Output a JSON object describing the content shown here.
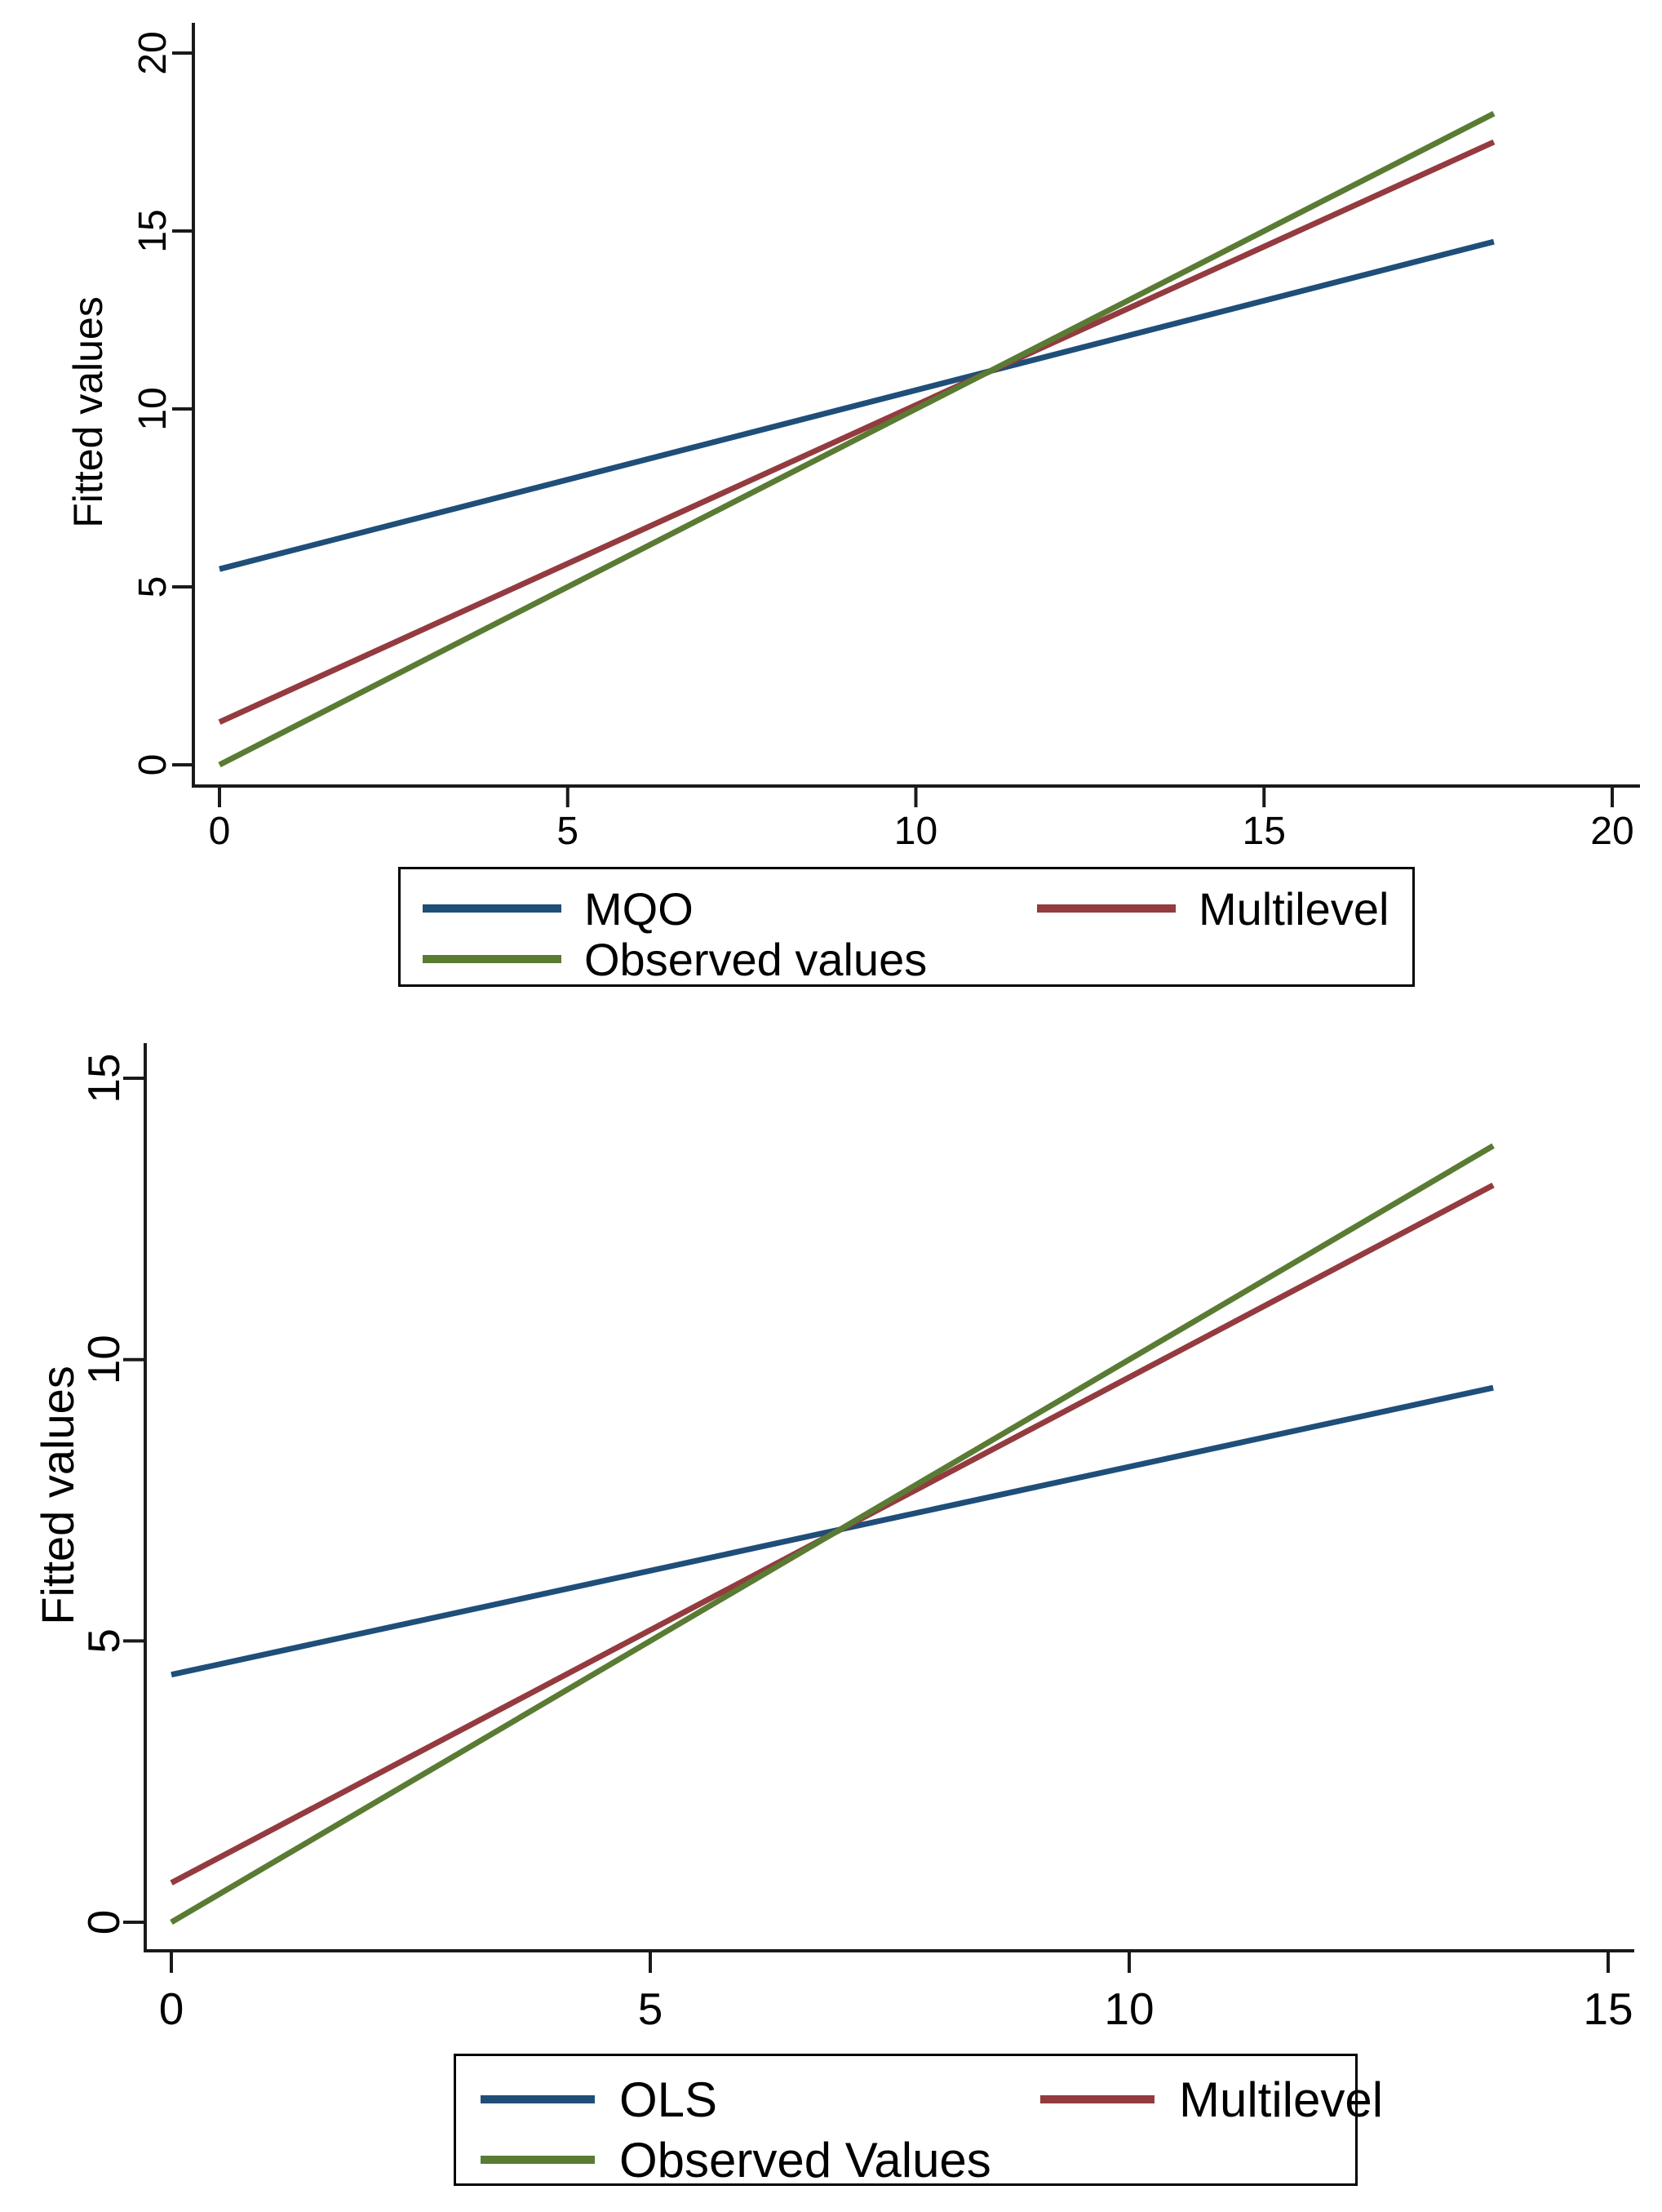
{
  "page": {
    "background": "#ffffff",
    "axis_color": "#1a1a1a",
    "text_color": "#000000"
  },
  "chart_data": [
    {
      "type": "line",
      "title": "",
      "xlabel": "",
      "ylabel": "Fitted values",
      "xlim": [
        0,
        20
      ],
      "ylim": [
        0,
        20
      ],
      "xticks": [
        0,
        5,
        10,
        15,
        20
      ],
      "yticks": [
        0,
        5,
        10,
        15,
        20
      ],
      "grid": false,
      "legend_position": "below-center",
      "series": [
        {
          "name": "MQO",
          "color": "#1f4e79",
          "x": [
            0,
            18.3
          ],
          "y": [
            5.5,
            14.7
          ]
        },
        {
          "name": "Multilevel",
          "color": "#943b40",
          "x": [
            0,
            18.3
          ],
          "y": [
            1.2,
            17.5
          ]
        },
        {
          "name": "Observed values",
          "color": "#5a7b33",
          "x": [
            0,
            18.3
          ],
          "y": [
            0,
            18.3
          ]
        }
      ]
    },
    {
      "type": "line",
      "title": "",
      "xlabel": "",
      "ylabel": "Fitted values",
      "xlim": [
        0,
        15
      ],
      "ylim": [
        0,
        15
      ],
      "xticks": [
        0,
        5,
        10,
        15
      ],
      "yticks": [
        0,
        5,
        10,
        15
      ],
      "grid": false,
      "legend_position": "below-center",
      "series": [
        {
          "name": "OLS",
          "color": "#1f4e79",
          "x": [
            0,
            13.8
          ],
          "y": [
            4.4,
            9.5
          ]
        },
        {
          "name": "Multilevel",
          "color": "#943b40",
          "x": [
            0,
            13.8
          ],
          "y": [
            0.7,
            13.1
          ]
        },
        {
          "name": "Observed Values",
          "color": "#5a7b33",
          "x": [
            0,
            13.8
          ],
          "y": [
            0,
            13.8
          ]
        }
      ]
    }
  ]
}
